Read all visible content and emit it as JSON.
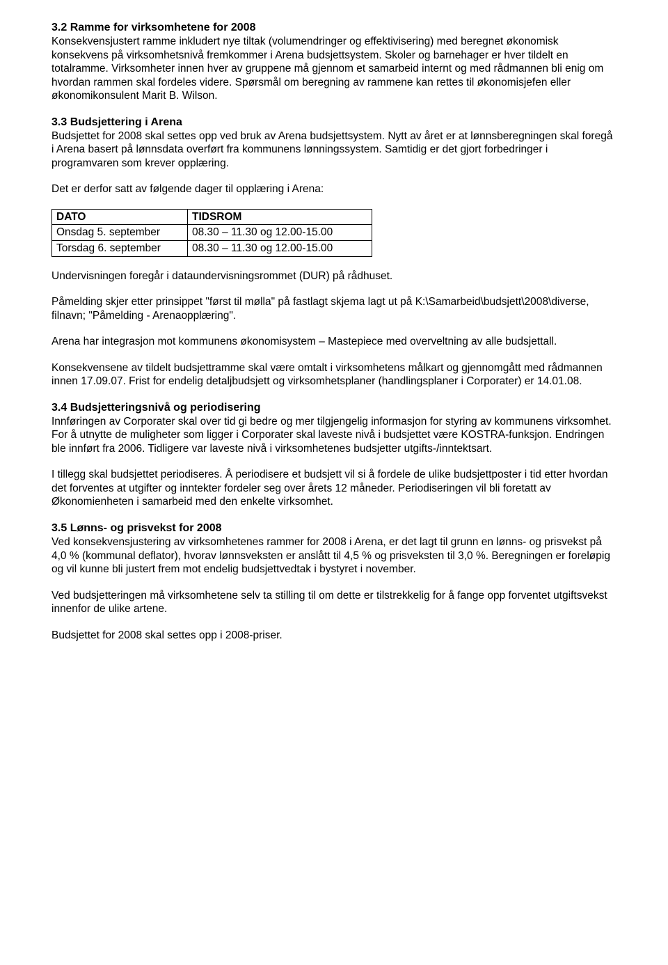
{
  "s32": {
    "heading": "3.2    Ramme for virksomhetene for 2008",
    "p1": "Konsekvensjustert ramme inkludert nye tiltak (volumendringer og effektivisering) med beregnet økonomisk konsekvens på virksomhetsnivå fremkommer i Arena budsjettsystem. Skoler og barnehager er hver tildelt en totalramme. Virksomheter innen hver av gruppene må gjennom et samarbeid internt og med rådmannen bli enig om hvordan rammen skal fordeles videre. Spørsmål om beregning av rammene kan rettes til økonomisjefen eller økonomikonsulent Marit B. Wilson."
  },
  "s33": {
    "heading": "3.3    Budsjettering i Arena",
    "p1": "Budsjettet for 2008 skal settes opp ved bruk av Arena budsjettsystem. Nytt av året er at lønnsberegningen skal foregå i Arena basert på lønnsdata overført fra kommunens lønningssystem. Samtidig er det gjort forbedringer i programvaren som krever opplæring.",
    "p2": "Det er derfor satt av følgende dager til opplæring i Arena:",
    "table": {
      "headers": {
        "c1": "DATO",
        "c2": "TIDSROM"
      },
      "rows": [
        {
          "c1": "Onsdag 5. september",
          "c2": "08.30 – 11.30 og 12.00-15.00"
        },
        {
          "c1": "Torsdag 6. september",
          "c2": "08.30 – 11.30 og 12.00-15.00"
        }
      ]
    },
    "p3": "Undervisningen foregår i dataundervisningsrommet (DUR) på rådhuset.",
    "p4": "Påmelding skjer etter prinsippet \"først til mølla\" på fastlagt skjema lagt ut på K:\\Samarbeid\\budsjett\\2008\\diverse, filnavn; \"Påmelding - Arenaopplæring\".",
    "p5": "Arena har integrasjon mot kommunens økonomisystem – Mastepiece med overveltning av alle budsjettall.",
    "p6": "Konsekvensene av tildelt budsjettramme skal være omtalt i virksomhetens målkart og gjennomgått med rådmannen innen 17.09.07. Frist for endelig detaljbudsjett og virksomhetsplaner (handlingsplaner i Corporater) er 14.01.08."
  },
  "s34": {
    "heading": "3.4    Budsjetteringsnivå og periodisering",
    "p1": "Innføringen av Corporater skal over tid gi bedre og mer tilgjengelig informasjon for styring av kommunens virksomhet. For å utnytte de muligheter som ligger i Corporater skal laveste nivå i budsjettet være KOSTRA-funksjon. Endringen ble innført fra 2006. Tidligere var laveste nivå i virksomhetenes budsjetter utgifts-/inntektsart.",
    "p2": "I tillegg skal budsjettet periodiseres. Å periodisere et budsjett vil si å fordele de ulike budsjettposter i tid etter hvordan det forventes at utgifter og inntekter fordeler seg over årets 12 måneder. Periodiseringen vil bli foretatt av Økonomienheten i samarbeid med den enkelte virksomhet."
  },
  "s35": {
    "heading": "3.5    Lønns- og prisvekst for 2008",
    "p1": "Ved konsekvensjustering av virksomhetenes rammer for 2008 i Arena, er det lagt til grunn en lønns- og prisvekst på 4,0 % (kommunal deflator), hvorav lønnsveksten er anslått til 4,5 % og prisveksten til 3,0 %. Beregningen er foreløpig og vil kunne bli justert frem mot endelig budsjettvedtak i bystyret i november.",
    "p2": "Ved budsjetteringen må virksomhetene selv ta stilling til om dette er tilstrekkelig for å fange opp forventet utgiftsvekst innenfor de ulike artene.",
    "p3": "Budsjettet for 2008 skal settes opp i 2008-priser."
  }
}
